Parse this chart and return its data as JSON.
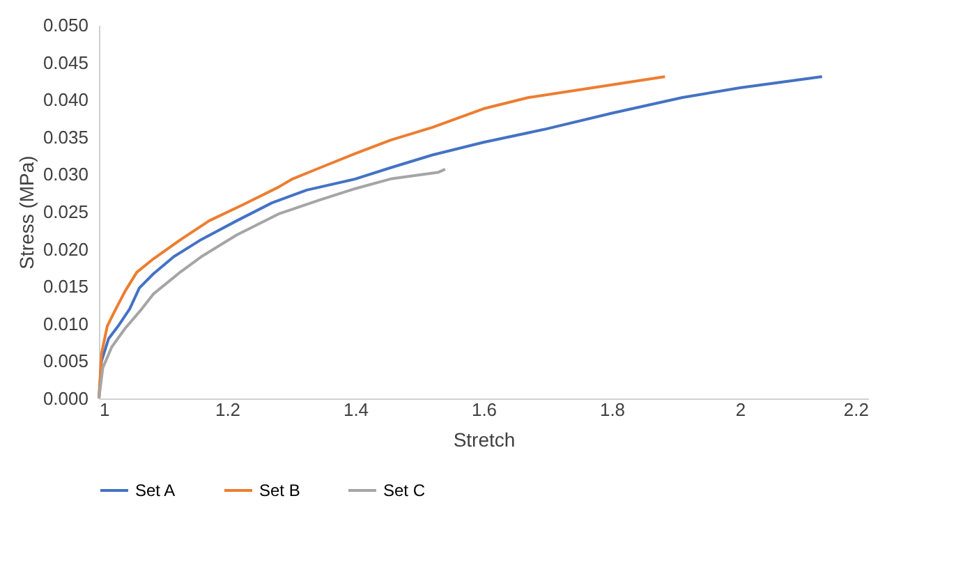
{
  "chart_data": {
    "type": "line",
    "xlabel": "Stretch",
    "ylabel": "Stress (MPa)",
    "xlim": [
      1,
      2.2
    ],
    "xticks": [
      1,
      1.2,
      1.4,
      1.6,
      1.8,
      2,
      2.2
    ],
    "ylim": [
      0,
      0.05
    ],
    "yticks": [
      {
        "value": 0,
        "label": "0.000"
      },
      0.005,
      {
        "value": 0.01,
        "label": "0.010"
      },
      0.015,
      {
        "value": 0.02,
        "label": "0.020"
      },
      0.025,
      {
        "value": 0.03,
        "label": "0.030"
      },
      0.035,
      {
        "value": 0.04,
        "label": "0.040"
      },
      0.045,
      {
        "value": 0.05,
        "label": "0.050"
      }
    ],
    "grid": false,
    "legend": "bottom",
    "marker": "none",
    "line_style": "solid",
    "series": [
      {
        "name": "Set A",
        "color": "#4472c4",
        "x": [
          1,
          1.004,
          1.015,
          1.03,
          1.048,
          1.063,
          1.085,
          1.117,
          1.16,
          1.215,
          1.27,
          1.324,
          1.4,
          1.455,
          1.52,
          1.6,
          1.693,
          1.8,
          1.91,
          2.0,
          2.128
        ],
        "values": [
          0,
          0.005,
          0.008,
          0.0097,
          0.012,
          0.0148,
          0.0167,
          0.019,
          0.0213,
          0.0238,
          0.0262,
          0.0279,
          0.0294,
          0.0309,
          0.0326,
          0.0343,
          0.036,
          0.0382,
          0.0403,
          0.0416,
          0.0431
        ]
      },
      {
        "name": "Set B",
        "color": "#ed7d31",
        "x": [
          1,
          1.004,
          1.013,
          1.024,
          1.041,
          1.059,
          1.085,
          1.128,
          1.172,
          1.226,
          1.28,
          1.302,
          1.345,
          1.4,
          1.455,
          1.52,
          1.6,
          1.67,
          1.8,
          1.883
        ],
        "values": [
          0,
          0.006,
          0.0097,
          0.0116,
          0.0144,
          0.0169,
          0.0187,
          0.0213,
          0.0238,
          0.026,
          0.0283,
          0.0294,
          0.0309,
          0.0328,
          0.0346,
          0.0363,
          0.0388,
          0.0403,
          0.042,
          0.0431
        ]
      },
      {
        "name": "Set C",
        "color": "#a5a5a5",
        "x": [
          1,
          1.006,
          1.02,
          1.041,
          1.063,
          1.085,
          1.128,
          1.16,
          1.215,
          1.28,
          1.345,
          1.4,
          1.455,
          1.53,
          1.54
        ],
        "values": [
          0,
          0.0041,
          0.0069,
          0.0094,
          0.0116,
          0.014,
          0.017,
          0.019,
          0.0219,
          0.0247,
          0.0266,
          0.0281,
          0.0294,
          0.0303,
          0.0307
        ]
      }
    ]
  }
}
